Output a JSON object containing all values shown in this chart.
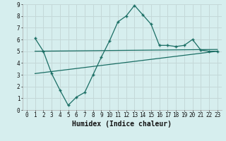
{
  "xlabel": "Humidex (Indice chaleur)",
  "background_color": "#d6eeee",
  "grid_color": "#c4d8d8",
  "line_color": "#1a6e64",
  "xlim": [
    -0.5,
    23.5
  ],
  "ylim": [
    0,
    9
  ],
  "xticks": [
    0,
    1,
    2,
    3,
    4,
    5,
    6,
    7,
    8,
    9,
    10,
    11,
    12,
    13,
    14,
    15,
    16,
    17,
    18,
    19,
    20,
    21,
    22,
    23
  ],
  "yticks": [
    0,
    1,
    2,
    3,
    4,
    5,
    6,
    7,
    8,
    9
  ],
  "curve1_x": [
    1,
    2,
    3,
    4,
    5,
    6,
    7,
    8,
    9,
    10,
    11,
    12,
    13,
    14,
    15,
    16,
    17,
    18,
    19,
    20,
    21,
    22,
    23
  ],
  "curve1_y": [
    6.1,
    5.0,
    3.1,
    1.7,
    0.4,
    1.1,
    1.5,
    3.0,
    4.5,
    5.9,
    7.5,
    8.0,
    8.9,
    8.1,
    7.3,
    5.5,
    5.5,
    5.4,
    5.5,
    6.0,
    5.1,
    5.0,
    5.0
  ],
  "line2_x": [
    1,
    23
  ],
  "line2_y": [
    5.0,
    5.15
  ],
  "line3_x": [
    1,
    23
  ],
  "line3_y": [
    3.1,
    5.0
  ],
  "figsize": [
    3.2,
    2.0
  ],
  "dpi": 100,
  "tick_fontsize": 5.5,
  "xlabel_fontsize": 7
}
